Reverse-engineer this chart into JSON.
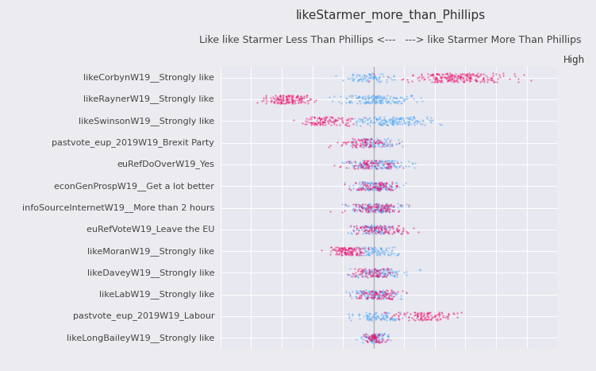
{
  "title": "likeStarmer_more_than_Phillips",
  "subtitle": "Like like Starmer Less Than Phillips <---   ---> like Starmer More Than Phillips",
  "categories": [
    "likeCorbynW19__Strongly like",
    "likeRaynerW19__Strongly like",
    "likeSwinsonW19__Strongly like",
    "pastvote_eup_2019W19_Brexit Party",
    "euRefDoOverW19_Yes",
    "econGenProspW19__Get a lot better",
    "infoSourceInternetW19__More than 2 hours",
    "euRefVoteW19_Leave the EU",
    "likeMoranW19__Strongly like",
    "likeDaveyW19__Strongly like",
    "likeLabW19__Strongly like",
    "pastvote_eup_2019W19_Labour",
    "likeLongBaileyW19__Strongly like"
  ],
  "bg_color": "#ebebf0",
  "plot_bg_color": "#e8e8f0",
  "color_blue": "#4da6f5",
  "color_red": "#e8106e",
  "color_gray": "#aaaaaa",
  "high_bar_color": "#f0006a",
  "vline_color": "#999999",
  "title_fontsize": 11,
  "subtitle_fontsize": 9,
  "label_fontsize": 8,
  "seed": 42,
  "distributions": {
    "likeCorbynW19__Strongly like": {
      "blue_mean": -0.2,
      "blue_std": 0.4,
      "red_mean": 2.8,
      "red_std": 0.9,
      "blue_n": 80,
      "red_n": 220
    },
    "likeRaynerW19__Strongly like": {
      "blue_mean": 0.15,
      "blue_std": 0.55,
      "red_mean": -2.8,
      "red_std": 0.4,
      "blue_n": 160,
      "red_n": 140
    },
    "likeSwinsonW19__Strongly like": {
      "blue_mean": 0.6,
      "blue_std": 0.7,
      "red_mean": -1.5,
      "red_std": 0.5,
      "blue_n": 170,
      "red_n": 110
    },
    "pastvote_eup_2019W19_Brexit Party": {
      "blue_mean": 0.05,
      "blue_std": 0.35,
      "red_mean": -0.35,
      "red_std": 0.45,
      "blue_n": 80,
      "red_n": 90
    },
    "euRefDoOverW19_Yes": {
      "blue_mean": 0.2,
      "blue_std": 0.55,
      "red_mean": -0.1,
      "red_std": 0.45,
      "blue_n": 130,
      "red_n": 90
    },
    "econGenProspW19__Get a lot better": {
      "blue_mean": 0.05,
      "blue_std": 0.38,
      "red_mean": 0.0,
      "red_std": 0.38,
      "blue_n": 110,
      "red_n": 95
    },
    "infoSourceInternetW19__More than 2 hours": {
      "blue_mean": 0.15,
      "blue_std": 0.45,
      "red_mean": 0.05,
      "red_std": 0.42,
      "blue_n": 125,
      "red_n": 110
    },
    "euRefVoteW19_Leave the EU": {
      "blue_mean": 0.0,
      "blue_std": 0.35,
      "red_mean": 0.25,
      "red_std": 0.45,
      "blue_n": 90,
      "red_n": 110
    },
    "likeMoranW19__Strongly like": {
      "blue_mean": 0.05,
      "blue_std": 0.35,
      "red_mean": -0.9,
      "red_std": 0.28,
      "blue_n": 85,
      "red_n": 120
    },
    "likeDaveyW19__Strongly like": {
      "blue_mean": 0.18,
      "blue_std": 0.45,
      "red_mean": -0.05,
      "red_std": 0.35,
      "blue_n": 100,
      "red_n": 85
    },
    "likeLabW19__Strongly like": {
      "blue_mean": 0.1,
      "blue_std": 0.38,
      "red_mean": 0.18,
      "red_std": 0.38,
      "blue_n": 115,
      "red_n": 95
    },
    "pastvote_eup_2019W19_Labour": {
      "blue_mean": 0.05,
      "blue_std": 0.42,
      "red_mean": 1.6,
      "red_std": 0.55,
      "blue_n": 90,
      "red_n": 110
    },
    "likeLongBaileyW19__Strongly like": {
      "blue_mean": 0.08,
      "blue_std": 0.25,
      "red_mean": 0.02,
      "red_std": 0.18,
      "blue_n": 75,
      "red_n": 70
    }
  }
}
